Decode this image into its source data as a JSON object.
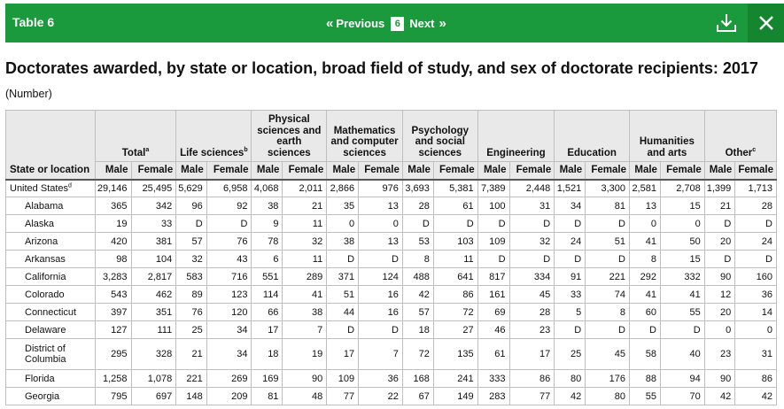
{
  "header": {
    "table_label": "Table 6",
    "prev_label": "Previous",
    "page_number": "6",
    "next_label": "Next"
  },
  "title": "Doctorates awarded, by state or location, broad field of study, and sex of doctorate recipients: 2017",
  "subtitle": "(Number)",
  "table": {
    "stub_header": "State or location",
    "groups": [
      {
        "label": "Total",
        "sup": "a"
      },
      {
        "label": "Life sciences",
        "sup": "b"
      },
      {
        "label": "Physical sciences and earth sciences",
        "sup": ""
      },
      {
        "label": "Mathematics and computer sciences",
        "sup": ""
      },
      {
        "label": "Psychology and social sciences",
        "sup": ""
      },
      {
        "label": "Engineering",
        "sup": ""
      },
      {
        "label": "Education",
        "sup": ""
      },
      {
        "label": "Humanities and arts",
        "sup": ""
      },
      {
        "label": "Other",
        "sup": "c"
      }
    ],
    "male_label": "Male",
    "female_label": "Female",
    "rows": [
      {
        "name": "United States",
        "sup": "d",
        "values": [
          "29,146",
          "25,495",
          "5,629",
          "6,958",
          "4,068",
          "2,011",
          "2,866",
          "976",
          "3,693",
          "5,381",
          "7,389",
          "2,448",
          "1,521",
          "3,300",
          "2,581",
          "2,708",
          "1,399",
          "1,713"
        ]
      },
      {
        "name": "Alabama",
        "sup": "",
        "values": [
          "365",
          "342",
          "96",
          "92",
          "38",
          "21",
          "35",
          "13",
          "28",
          "61",
          "100",
          "31",
          "34",
          "81",
          "13",
          "15",
          "21",
          "28"
        ]
      },
      {
        "name": "Alaska",
        "sup": "",
        "values": [
          "19",
          "33",
          "D",
          "D",
          "9",
          "11",
          "0",
          "0",
          "D",
          "D",
          "D",
          "D",
          "D",
          "D",
          "0",
          "0",
          "D",
          "D"
        ]
      },
      {
        "name": "Arizona",
        "sup": "",
        "values": [
          "420",
          "381",
          "57",
          "76",
          "78",
          "32",
          "38",
          "13",
          "53",
          "103",
          "109",
          "32",
          "24",
          "51",
          "41",
          "50",
          "20",
          "24"
        ]
      },
      {
        "name": "Arkansas",
        "sup": "",
        "values": [
          "98",
          "104",
          "32",
          "43",
          "6",
          "11",
          "D",
          "D",
          "8",
          "11",
          "D",
          "D",
          "D",
          "D",
          "8",
          "15",
          "D",
          "D"
        ]
      },
      {
        "name": "California",
        "sup": "",
        "values": [
          "3,283",
          "2,817",
          "583",
          "716",
          "551",
          "289",
          "371",
          "124",
          "488",
          "641",
          "817",
          "334",
          "91",
          "221",
          "292",
          "332",
          "90",
          "160"
        ]
      },
      {
        "name": "Colorado",
        "sup": "",
        "values": [
          "543",
          "462",
          "89",
          "123",
          "114",
          "41",
          "51",
          "16",
          "42",
          "86",
          "161",
          "45",
          "33",
          "74",
          "41",
          "41",
          "12",
          "36"
        ]
      },
      {
        "name": "Connecticut",
        "sup": "",
        "values": [
          "397",
          "351",
          "76",
          "120",
          "66",
          "38",
          "44",
          "16",
          "57",
          "72",
          "69",
          "28",
          "5",
          "8",
          "60",
          "55",
          "20",
          "14"
        ]
      },
      {
        "name": "Delaware",
        "sup": "",
        "values": [
          "127",
          "111",
          "25",
          "34",
          "17",
          "7",
          "D",
          "D",
          "18",
          "27",
          "46",
          "23",
          "D",
          "D",
          "D",
          "D",
          "0",
          "0"
        ]
      },
      {
        "name": "District of Columbia",
        "sup": "",
        "values": [
          "295",
          "328",
          "21",
          "34",
          "18",
          "19",
          "17",
          "7",
          "72",
          "135",
          "61",
          "17",
          "25",
          "45",
          "58",
          "40",
          "23",
          "31"
        ]
      },
      {
        "name": "Florida",
        "sup": "",
        "values": [
          "1,258",
          "1,078",
          "221",
          "269",
          "169",
          "90",
          "109",
          "36",
          "168",
          "241",
          "333",
          "86",
          "80",
          "176",
          "88",
          "94",
          "90",
          "86"
        ]
      },
      {
        "name": "Georgia",
        "sup": "",
        "values": [
          "795",
          "697",
          "148",
          "209",
          "81",
          "48",
          "77",
          "22",
          "67",
          "149",
          "283",
          "77",
          "42",
          "80",
          "55",
          "70",
          "42",
          "42"
        ]
      }
    ]
  },
  "colors": {
    "header_green": "#1a9a3c",
    "close_green": "#14862f",
    "table_header_bg": "#e9e9e9"
  },
  "icons": [
    "double-chevron-left-icon",
    "double-chevron-right-icon",
    "download-icon",
    "close-icon"
  ]
}
